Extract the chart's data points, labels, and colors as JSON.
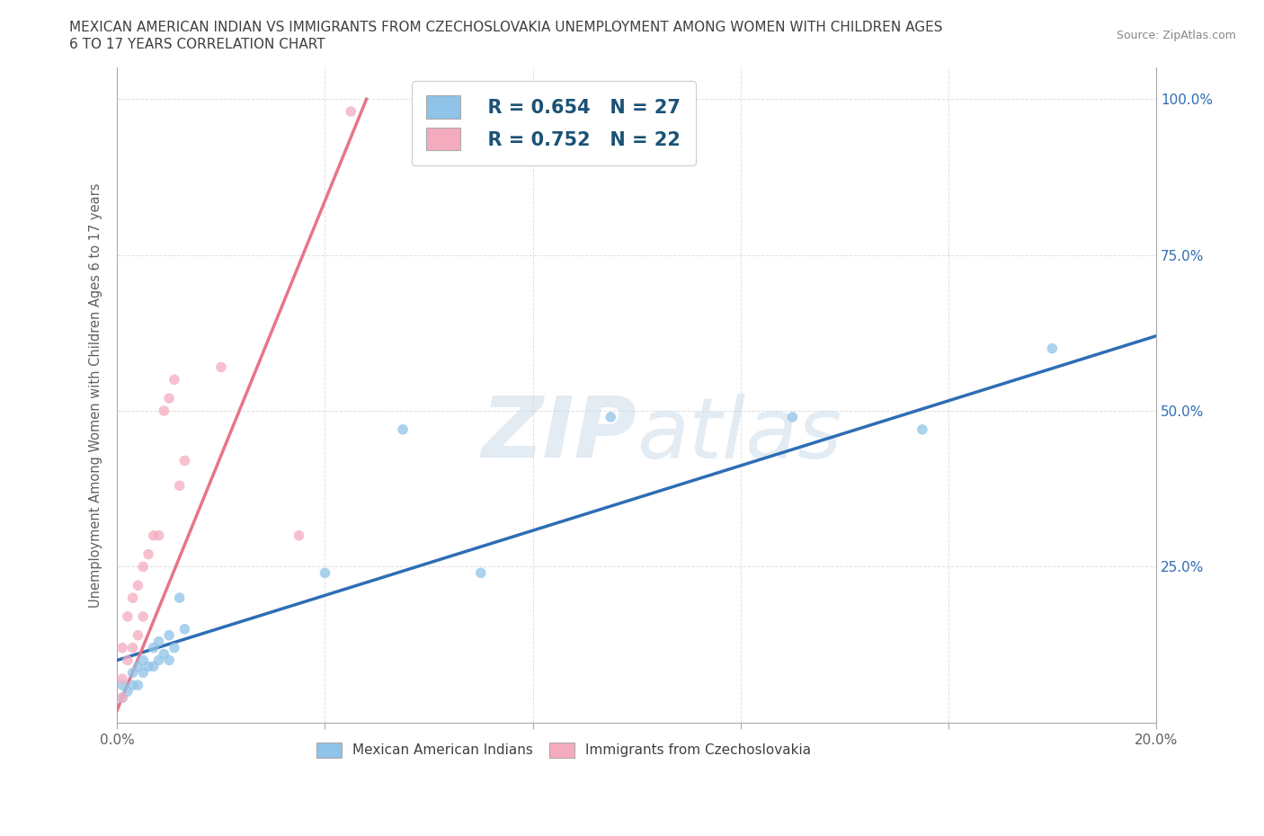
{
  "title_line1": "MEXICAN AMERICAN INDIAN VS IMMIGRANTS FROM CZECHOSLOVAKIA UNEMPLOYMENT AMONG WOMEN WITH CHILDREN AGES",
  "title_line2": "6 TO 17 YEARS CORRELATION CHART",
  "source": "Source: ZipAtlas.com",
  "ylabel": "Unemployment Among Women with Children Ages 6 to 17 years",
  "xlim": [
    0.0,
    0.2
  ],
  "ylim": [
    0.0,
    1.05
  ],
  "xticks": [
    0.0,
    0.04,
    0.08,
    0.12,
    0.16,
    0.2
  ],
  "yticks": [
    0.0,
    0.25,
    0.5,
    0.75,
    1.0
  ],
  "right_ytick_labels": [
    "",
    "25.0%",
    "50.0%",
    "75.0%",
    "100.0%"
  ],
  "blue_r": 0.654,
  "blue_n": 27,
  "pink_r": 0.752,
  "pink_n": 22,
  "blue_color": "#8FC3E8",
  "pink_color": "#F5ABBE",
  "blue_line_color": "#2E6DB4",
  "pink_line_color": "#E8748A",
  "watermark_zip": "ZIP",
  "watermark_atlas": "atlas",
  "background_color": "#FFFFFF",
  "grid_color": "#CCCCCC",
  "title_color": "#404040",
  "axis_label_color": "#606060",
  "legend_text_color": "#1A5276",
  "blue_scatter_x": [
    0.001,
    0.001,
    0.002,
    0.003,
    0.003,
    0.004,
    0.004,
    0.005,
    0.005,
    0.006,
    0.007,
    0.007,
    0.008,
    0.008,
    0.009,
    0.01,
    0.01,
    0.011,
    0.012,
    0.013,
    0.04,
    0.055,
    0.07,
    0.095,
    0.13,
    0.155,
    0.18
  ],
  "blue_scatter_y": [
    0.04,
    0.06,
    0.05,
    0.06,
    0.08,
    0.06,
    0.09,
    0.08,
    0.1,
    0.09,
    0.09,
    0.12,
    0.1,
    0.13,
    0.11,
    0.1,
    0.14,
    0.12,
    0.2,
    0.15,
    0.24,
    0.47,
    0.24,
    0.49,
    0.49,
    0.47,
    0.6
  ],
  "pink_scatter_x": [
    0.001,
    0.001,
    0.001,
    0.002,
    0.002,
    0.003,
    0.003,
    0.004,
    0.004,
    0.005,
    0.005,
    0.006,
    0.007,
    0.008,
    0.009,
    0.01,
    0.011,
    0.012,
    0.013,
    0.02,
    0.035,
    0.045
  ],
  "pink_scatter_y": [
    0.04,
    0.07,
    0.12,
    0.1,
    0.17,
    0.12,
    0.2,
    0.14,
    0.22,
    0.17,
    0.25,
    0.27,
    0.3,
    0.3,
    0.5,
    0.52,
    0.55,
    0.38,
    0.42,
    0.57,
    0.3,
    0.98
  ],
  "blue_trendline_x": [
    0.0,
    0.2
  ],
  "blue_trendline_y": [
    0.1,
    0.62
  ],
  "pink_trendline_x": [
    0.0,
    0.048
  ],
  "pink_trendline_y": [
    0.02,
    1.0
  ]
}
